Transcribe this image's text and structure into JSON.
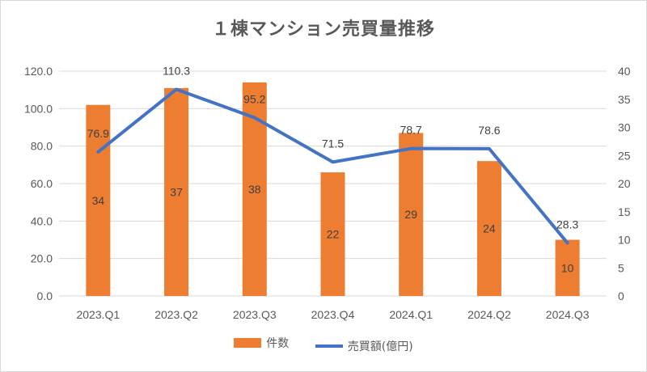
{
  "chart_data": {
    "type": "bar",
    "title": "１棟マンション売買量推移",
    "categories": [
      "2023.Q1",
      "2023.Q2",
      "2023.Q3",
      "2023.Q4",
      "2024.Q1",
      "2024.Q2",
      "2024.Q3"
    ],
    "series": [
      {
        "name": "件数",
        "type": "bar",
        "axis": "right",
        "color": "#ED7D31",
        "values": [
          34,
          37,
          38,
          22,
          29,
          24,
          10
        ],
        "labels": [
          "34",
          "37",
          "38",
          "22",
          "29",
          "24",
          "10"
        ]
      },
      {
        "name": "売買額(億円)",
        "type": "line",
        "axis": "left",
        "color": "#4472C4",
        "values": [
          76.9,
          110.3,
          95.2,
          71.5,
          78.7,
          78.6,
          28.3
        ],
        "labels": [
          "76.9",
          "110.3",
          "95.2",
          "71.5",
          "78.7",
          "78.6",
          "28.3"
        ]
      }
    ],
    "y_left": {
      "ylim": [
        0,
        120
      ],
      "ticks": [
        "0.0",
        "20.0",
        "40.0",
        "60.0",
        "80.0",
        "100.0",
        "120.0"
      ]
    },
    "y_right": {
      "ylim": [
        0,
        40
      ],
      "ticks": [
        "0",
        "5",
        "10",
        "15",
        "20",
        "25",
        "30",
        "35",
        "40"
      ]
    },
    "grid": true,
    "legend": "bottom"
  }
}
